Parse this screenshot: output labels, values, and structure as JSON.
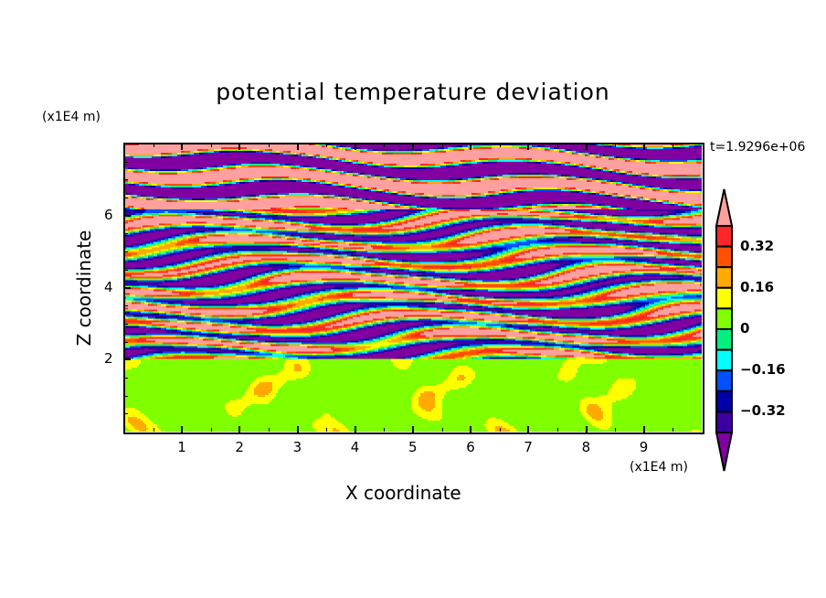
{
  "chart_data": {
    "type": "heatmap",
    "subtype": "shaded contour",
    "title": "potential temperature deviation",
    "xlabel": "X coordinate",
    "ylabel": "Z coordinate",
    "x_unit": "(x1E4 m)",
    "y_unit": "(x1E4 m)",
    "time_label": "t=1.9296e+06",
    "xlim": [
      0,
      10
    ],
    "ylim": [
      0,
      8
    ],
    "x_ticks": [
      "1",
      "2",
      "3",
      "4",
      "5",
      "6",
      "7",
      "8",
      "9"
    ],
    "y_ticks": [
      "2",
      "4",
      "6"
    ],
    "contour_levels": [
      -0.4,
      -0.32,
      -0.24,
      -0.16,
      -0.08,
      0,
      0.08,
      0.16,
      0.24,
      0.32,
      0.4
    ],
    "colorbar_labels": [
      {
        "label": "0.32",
        "value": 0.32
      },
      {
        "label": "0.16",
        "value": 0.16
      },
      {
        "label": "0",
        "value": 0
      },
      {
        "label": "−0.16",
        "value": -0.16
      },
      {
        "label": "−0.32",
        "value": -0.32
      }
    ],
    "colors": [
      "#8000a0",
      "#3c00a0",
      "#0000a8",
      "#0050ff",
      "#00ffff",
      "#00f080",
      "#80ff00",
      "#ffff00",
      "#ffaa00",
      "#ff5000",
      "#ff2828",
      "#ffa0a0"
    ],
    "colorbar_extend": "both",
    "legend_placement": "right",
    "grid": false,
    "field_description_regions": [
      {
        "z_range": [
          6.2,
          8
        ],
        "pattern": "alternating bands below -0.4 and above 0.4"
      },
      {
        "z_range": [
          2,
          6.2
        ],
        "pattern": "layered mixed values across full range"
      },
      {
        "z_range": [
          0,
          2
        ],
        "pattern": "mostly 0 to 0.08 with 0.08-0.16 plumes"
      }
    ]
  }
}
